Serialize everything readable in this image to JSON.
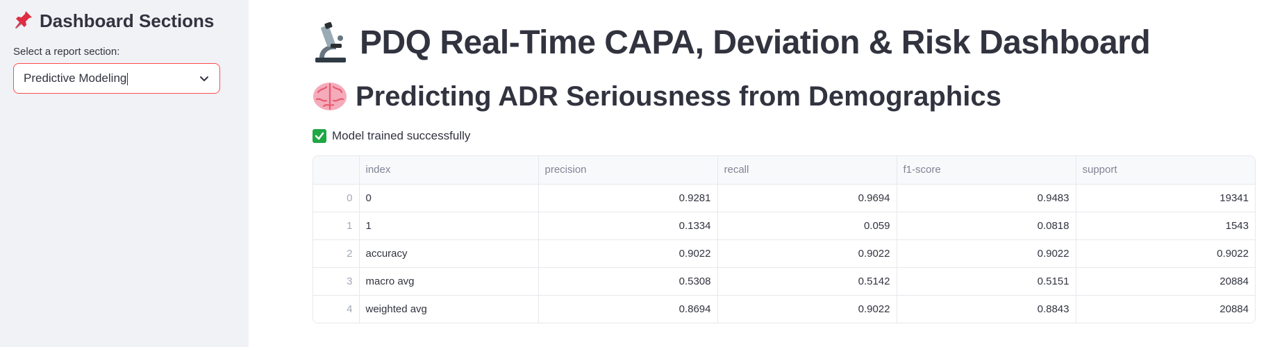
{
  "sidebar": {
    "title": "Dashboard Sections",
    "select_label": "Select a report section:",
    "select_value": "Predictive Modeling"
  },
  "main": {
    "title": "PDQ Real-Time CAPA, Deviation & Risk Dashboard",
    "section_title": "Predicting ADR Seriousness from Demographics",
    "status_text": "Model trained successfully"
  },
  "table": {
    "columns": [
      "",
      "index",
      "precision",
      "recall",
      "f1-score",
      "support"
    ],
    "rows": [
      {
        "rownum": "0",
        "index": "0",
        "precision": "0.9281",
        "recall": "0.9694",
        "f1": "0.9483",
        "support": "19341"
      },
      {
        "rownum": "1",
        "index": "1",
        "precision": "0.1334",
        "recall": "0.059",
        "f1": "0.0818",
        "support": "1543"
      },
      {
        "rownum": "2",
        "index": "accuracy",
        "precision": "0.9022",
        "recall": "0.9022",
        "f1": "0.9022",
        "support": "0.9022"
      },
      {
        "rownum": "3",
        "index": "macro avg",
        "precision": "0.5308",
        "recall": "0.5142",
        "f1": "0.5151",
        "support": "20884"
      },
      {
        "rownum": "4",
        "index": "weighted avg",
        "precision": "0.8694",
        "recall": "0.9022",
        "f1": "0.8843",
        "support": "20884"
      }
    ]
  },
  "icons": {
    "sidebar": "pushpin-icon",
    "title": "microscope-icon",
    "section": "brain-icon",
    "status": "check-mark-icon",
    "select": "chevron-down-icon"
  },
  "colors": {
    "accent": "#ff4b4b",
    "sidebar_bg": "#f0f2f6",
    "text": "#31333f",
    "success": "#1fa745"
  }
}
